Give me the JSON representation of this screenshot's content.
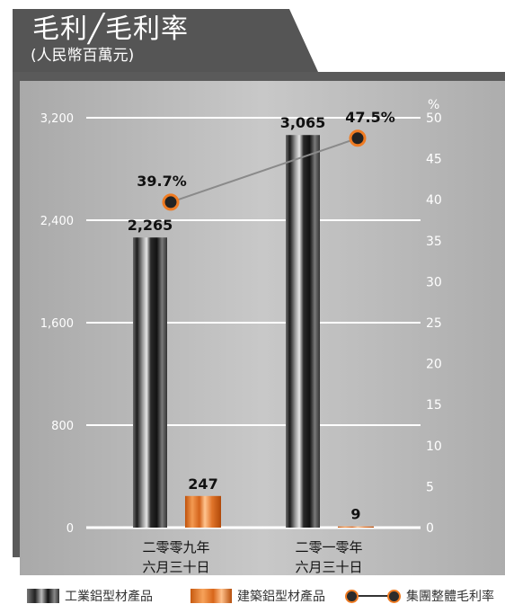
{
  "header": {
    "title": "毛利╱毛利率",
    "subtitle": "(人民幣百萬元)"
  },
  "colors": {
    "panel_dark": "#555555",
    "plot_bg": "#b7b7b7",
    "gridline": "#ffffff",
    "line": "#8a8a8a",
    "marker_fill": "#222222",
    "marker_ring": "#ef7b22",
    "orange": "#ef7b22"
  },
  "legend": {
    "industrial": "工業鋁型材產品",
    "construction": "建築鋁型材產品",
    "margin": "集團整體毛利率"
  },
  "chart_data": {
    "type": "bar",
    "categories": [
      "二零零九年\n六月三十日",
      "二零一零年\n六月三十日"
    ],
    "series": [
      {
        "name": "工業鋁型材產品",
        "values": [
          2265,
          3065
        ],
        "labels": [
          "2,265",
          "3,065"
        ]
      },
      {
        "name": "建築鋁型材產品",
        "values": [
          247,
          9
        ],
        "labels": [
          "247",
          "9"
        ]
      }
    ],
    "line_series": {
      "name": "集團整體毛利率",
      "values": [
        39.7,
        47.5
      ],
      "labels": [
        "39.7%",
        "47.5%"
      ]
    },
    "y_left": {
      "ylim": [
        0,
        3200
      ],
      "ticks": [
        0,
        800,
        1600,
        2400,
        3200
      ],
      "tick_labels": [
        "0",
        "800",
        "1,600",
        "2,400",
        "3,200"
      ]
    },
    "y_right": {
      "ylim": [
        0,
        50
      ],
      "ticks": [
        0,
        5,
        10,
        15,
        20,
        25,
        30,
        35,
        40,
        45,
        50
      ],
      "unit_label": "%"
    },
    "grid": true
  }
}
